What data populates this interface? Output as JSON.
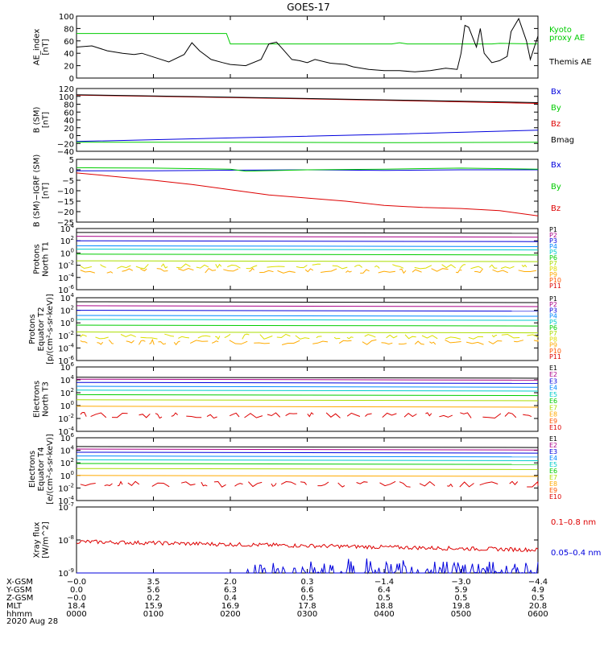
{
  "title": "GOES-17",
  "date_label": "2020 Aug 28",
  "colors": {
    "Bx": "#0000dd",
    "By": "#00cc00",
    "Bz": "#dd0000",
    "Bmag": "#000000",
    "xray_long": "#dd0000",
    "xray_short": "#0000dd"
  },
  "chart_data": [
    {
      "type": "line",
      "id": "ae",
      "ylabel": [
        "AE_index",
        "[nT]"
      ],
      "yticks": [
        "100",
        "80",
        "60",
        "40",
        "20",
        "0"
      ],
      "ylim": [
        0,
        100
      ],
      "legend": [
        {
          "name": "Kyoto",
          "color": "#00cc00"
        },
        {
          "name": "proxy AE",
          "color": "#00cc00"
        },
        {
          "name": "Themis AE",
          "color": "#000000"
        }
      ],
      "series": [
        {
          "name": "Kyoto proxy AE",
          "color": "#00cc00",
          "x": [
            0,
            0.55,
            0.6,
            0.75,
            1.0,
            1.3,
            1.9,
            1.95,
            2.0,
            2.05,
            3.1,
            3.2,
            3.3,
            4.1,
            4.2,
            4.3,
            5.4,
            5.5,
            6.0
          ],
          "y": [
            72,
            72,
            72,
            72,
            72,
            72,
            72,
            72,
            55,
            55,
            55,
            55,
            55,
            55,
            57,
            55,
            55,
            56,
            55
          ]
        },
        {
          "name": "Themis AE",
          "color": "#000000",
          "x": [
            0,
            0.2,
            0.4,
            0.6,
            0.75,
            0.85,
            1.0,
            1.2,
            1.4,
            1.5,
            1.6,
            1.75,
            1.9,
            2.0,
            2.2,
            2.4,
            2.5,
            2.6,
            2.7,
            2.8,
            2.9,
            3.0,
            3.1,
            3.3,
            3.5,
            3.6,
            3.8,
            4.0,
            4.2,
            4.4,
            4.6,
            4.8,
            4.95,
            5.0,
            5.05,
            5.1,
            5.2,
            5.25,
            5.3,
            5.4,
            5.5,
            5.6,
            5.65,
            5.75,
            5.85,
            5.9,
            6.0
          ],
          "y": [
            50,
            52,
            44,
            40,
            38,
            40,
            34,
            26,
            38,
            57,
            44,
            30,
            25,
            22,
            20,
            30,
            55,
            58,
            44,
            30,
            28,
            25,
            30,
            24,
            22,
            18,
            14,
            12,
            12,
            10,
            12,
            16,
            14,
            40,
            85,
            82,
            50,
            80,
            40,
            25,
            28,
            35,
            75,
            96,
            60,
            30,
            68
          ]
        }
      ]
    },
    {
      "type": "line",
      "id": "b",
      "ylabel": [
        "B (SM)",
        "[nT]"
      ],
      "yticks": [
        "120",
        "100",
        "80",
        "60",
        "40",
        "20",
        "0",
        "−20",
        "−40"
      ],
      "ylim": [
        -40,
        120
      ],
      "legend": [
        {
          "name": "Bx",
          "color": "#0000dd"
        },
        {
          "name": "By",
          "color": "#00cc00"
        },
        {
          "name": "Bz",
          "color": "#dd0000"
        },
        {
          "name": "Bmag",
          "color": "#000000"
        }
      ],
      "series": [
        {
          "name": "Bx",
          "color": "#0000dd",
          "x": [
            0,
            2,
            4,
            6
          ],
          "y": [
            -15,
            -6,
            3,
            14
          ]
        },
        {
          "name": "By",
          "color": "#00cc00",
          "x": [
            0,
            2,
            4,
            6
          ],
          "y": [
            -17,
            -17,
            -18,
            -17
          ]
        },
        {
          "name": "Bz",
          "color": "#dd0000",
          "x": [
            0,
            2,
            4,
            6
          ],
          "y": [
            103,
            97,
            90,
            82
          ]
        },
        {
          "name": "Bmag",
          "color": "#000000",
          "x": [
            0,
            2,
            4,
            6
          ],
          "y": [
            104,
            98,
            91,
            84
          ]
        }
      ]
    },
    {
      "type": "line",
      "id": "dbz",
      "ylabel": [
        "B (SM)−IGRF (SM)",
        "[nT]"
      ],
      "yticks": [
        "5",
        "0",
        "−5",
        "−10",
        "−15",
        "−20",
        "−25"
      ],
      "ylim": [
        -25,
        5
      ],
      "legend": [
        {
          "name": "Bx",
          "color": "#0000dd"
        },
        {
          "name": "By",
          "color": "#00cc00"
        },
        {
          "name": "Bz",
          "color": "#dd0000"
        }
      ],
      "series": [
        {
          "name": "Bx",
          "color": "#0000dd",
          "x": [
            0,
            1,
            2,
            3,
            4,
            5,
            6
          ],
          "y": [
            -0.5,
            -0.5,
            -0.2,
            0,
            -0.3,
            0,
            0
          ]
        },
        {
          "name": "By",
          "color": "#00cc00",
          "x": [
            0,
            1,
            2,
            2.2,
            3,
            4,
            5,
            6
          ],
          "y": [
            1,
            0.8,
            0.3,
            -0.7,
            0,
            0.3,
            0.8,
            0.3
          ]
        },
        {
          "name": "Bz",
          "color": "#dd0000",
          "x": [
            0,
            0.3,
            1,
            1.5,
            2,
            2.5,
            3,
            3.5,
            4,
            4.5,
            5,
            5.5,
            6
          ],
          "y": [
            -1.5,
            -2.5,
            -5,
            -7,
            -9.5,
            -12,
            -13.5,
            -15,
            -17,
            -18,
            -18.5,
            -19.5,
            -22
          ]
        }
      ]
    },
    {
      "type": "line",
      "id": "p1",
      "log": true,
      "ylabel": [
        "Protons",
        "North T1"
      ],
      "yticks": [
        "10^4",
        "10^2",
        "10^0",
        "10^-2",
        "10^-4",
        "10^-6"
      ],
      "ylim": [
        -7,
        4
      ],
      "channels": [
        {
          "name": "P1",
          "color": "#000000",
          "y": 3.3
        },
        {
          "name": "P2",
          "color": "#aa0088",
          "y": 2.6
        },
        {
          "name": "P3",
          "color": "#0000dd",
          "y": 1.8
        },
        {
          "name": "P4",
          "color": "#0088ff",
          "y": 0.9
        },
        {
          "name": "P5",
          "color": "#00cccc",
          "y": 0.3
        },
        {
          "name": "P6",
          "color": "#00cc00",
          "y": -0.6
        },
        {
          "name": "P7",
          "color": "#aadd00",
          "y": -1.8
        },
        {
          "name": "P8",
          "color": "#dddd00",
          "y": -2.8
        },
        {
          "name": "P9",
          "color": "#ffaa00",
          "y": -3.6
        },
        {
          "name": "P10",
          "color": "#ff5500",
          "y": -99
        },
        {
          "name": "P11",
          "color": "#dd0000",
          "y": -99
        }
      ]
    },
    {
      "type": "line",
      "id": "p2",
      "log": true,
      "ylabel": [
        "Protons",
        "Equator T2",
        "[p/(cm²-s-sr-keV)]"
      ],
      "yticks": [
        "10^4",
        "10^2",
        "10^0",
        "10^-2",
        "10^-4",
        "10^-6"
      ],
      "ylim": [
        -7,
        4
      ],
      "channels": [
        {
          "name": "P1",
          "color": "#000000",
          "y": 3.3
        },
        {
          "name": "P2",
          "color": "#aa0088",
          "y": 2.6
        },
        {
          "name": "P3",
          "color": "#0000dd",
          "y": 1.8
        },
        {
          "name": "P4",
          "color": "#0088ff",
          "y": 0.9
        },
        {
          "name": "P5",
          "color": "#00cccc",
          "y": 0.2
        },
        {
          "name": "P6",
          "color": "#00cc00",
          "y": -0.8
        },
        {
          "name": "P7",
          "color": "#aadd00",
          "y": -2.0
        },
        {
          "name": "P8",
          "color": "#dddd00",
          "y": -2.8
        },
        {
          "name": "P9",
          "color": "#ffaa00",
          "y": -3.8
        },
        {
          "name": "P10",
          "color": "#ff5500",
          "y": -99
        },
        {
          "name": "P11",
          "color": "#dd0000",
          "y": -99
        }
      ]
    },
    {
      "type": "line",
      "id": "e3",
      "log": true,
      "ylabel": [
        "Electrons",
        "North T3"
      ],
      "yticks": [
        "10^6",
        "10^4",
        "10^2",
        "10^0",
        "10^-2",
        "10^-4"
      ],
      "ylim": [
        -4,
        6
      ],
      "channels": [
        {
          "name": "E1",
          "color": "#000000",
          "y": 4.4
        },
        {
          "name": "E2",
          "color": "#aa0088",
          "y": 4.1
        },
        {
          "name": "E3",
          "color": "#0000dd",
          "y": 3.6
        },
        {
          "name": "E4",
          "color": "#0088ff",
          "y": 3.0
        },
        {
          "name": "E5",
          "color": "#00cccc",
          "y": 2.4
        },
        {
          "name": "E6",
          "color": "#00cc00",
          "y": 1.7
        },
        {
          "name": "E7",
          "color": "#aadd00",
          "y": 0.9
        },
        {
          "name": "E8",
          "color": "#ffaa00",
          "y": -0.1
        },
        {
          "name": "E9",
          "color": "#ff5500",
          "y": -99
        },
        {
          "name": "E10",
          "color": "#dd0000",
          "y": -1.5
        }
      ]
    },
    {
      "type": "line",
      "id": "e4",
      "log": true,
      "ylabel": [
        "Electrons",
        "Equator T4",
        "[e/(cm²-s-sr-keV)]"
      ],
      "yticks": [
        "10^6",
        "10^4",
        "10^2",
        "10^0",
        "10^-2",
        "10^-4"
      ],
      "ylim": [
        -4,
        6
      ],
      "channels": [
        {
          "name": "E1",
          "color": "#000000",
          "y": 4.6
        },
        {
          "name": "E2",
          "color": "#aa0088",
          "y": 4.2
        },
        {
          "name": "E3",
          "color": "#0000dd",
          "y": 3.7
        },
        {
          "name": "E4",
          "color": "#0088ff",
          "y": 3.1
        },
        {
          "name": "E5",
          "color": "#00cccc",
          "y": 2.5
        },
        {
          "name": "E6",
          "color": "#00cc00",
          "y": 1.9
        },
        {
          "name": "E7",
          "color": "#aadd00",
          "y": 1.1
        },
        {
          "name": "E8",
          "color": "#ffaa00",
          "y": 0.0
        },
        {
          "name": "E9",
          "color": "#ff5500",
          "y": -99
        },
        {
          "name": "E10",
          "color": "#dd0000",
          "y": -1.4
        }
      ]
    },
    {
      "type": "line",
      "id": "xray",
      "log": true,
      "ylabel": [
        "Xray flux",
        "[W/m^2]"
      ],
      "yticks": [
        "10^-7",
        "10^-8",
        "10^-9"
      ],
      "ylim": [
        -9,
        -7
      ],
      "legend": [
        {
          "name": "0.1–0.8 nm",
          "color": "#dd0000"
        },
        {
          "name": "0.05–0.4 nm",
          "color": "#0000dd"
        }
      ],
      "series": [
        {
          "name": "0.1–0.8 nm",
          "color": "#dd0000",
          "x": [
            0,
            1,
            2,
            3,
            4,
            5,
            6
          ],
          "y": [
            -8.05,
            -8.1,
            -8.12,
            -8.15,
            -8.2,
            -8.25,
            -8.3
          ]
        }
      ]
    }
  ],
  "xaxis": {
    "rows": [
      {
        "label": "X-GSM",
        "values": [
          "−0.0",
          "3.5",
          "2.0",
          "0.3",
          "−1.4",
          "−3.0",
          "−4.4"
        ]
      },
      {
        "label": "Y-GSM",
        "values": [
          "0.0",
          "5.6",
          "6.3",
          "6.6",
          "6.4",
          "5.9",
          "4.9"
        ]
      },
      {
        "label": "Z-GSM",
        "values": [
          "−0.0",
          "0.2",
          "0.4",
          "0.5",
          "0.5",
          "0.5",
          "0.5"
        ]
      },
      {
        "label": "MLT",
        "values": [
          "18.4",
          "15.9",
          "16.9",
          "17.8",
          "18.8",
          "19.8",
          "20.8"
        ]
      },
      {
        "label": "hhmm",
        "values": [
          "0000",
          "0100",
          "0200",
          "0300",
          "0400",
          "0500",
          "0600"
        ]
      }
    ]
  }
}
